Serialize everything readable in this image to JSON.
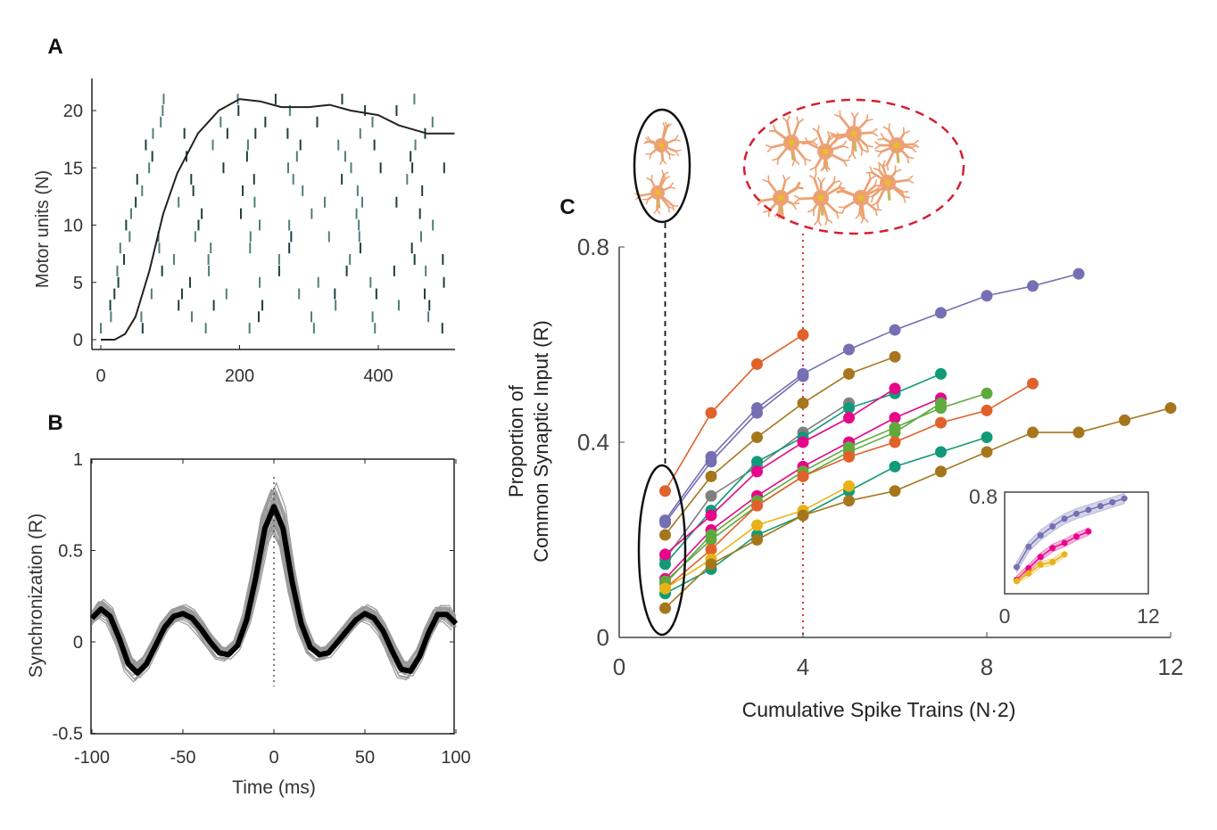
{
  "panel_labels": {
    "a": "A",
    "b": "B",
    "c": "C"
  },
  "colors": {
    "raster_dark": "#1f3f3f",
    "raster_light": "#4f7f7a",
    "orange": "#e0622a",
    "purple": "#7570b3",
    "brown": "#a6761d",
    "gray": "#808080",
    "teal": "#119a78",
    "magenta": "#e7058a",
    "green": "#5faa3f",
    "yellow": "#e8b318",
    "red_dashed": "#d42030",
    "neuron": "#eda173"
  },
  "chart_data": [
    {
      "id": "A",
      "type": "line",
      "title": "",
      "xlabel": "",
      "ylabel": "Motor units (N)",
      "xlim": [
        -10,
        510
      ],
      "ylim": [
        -1.5,
        22.5
      ],
      "xticks": [
        "0",
        "200",
        "400"
      ],
      "xtick_values": [
        0,
        200,
        400
      ],
      "yticks": [
        "0",
        "5",
        "10",
        "15",
        "20"
      ],
      "ytick_values": [
        0,
        5,
        10,
        15,
        20
      ],
      "raster_units": 21,
      "cumulative_curve": {
        "x": [
          0,
          20,
          35,
          50,
          70,
          90,
          110,
          140,
          170,
          200,
          230,
          260,
          300,
          330,
          360,
          400,
          430,
          470,
          510
        ],
        "y": [
          0,
          0,
          0.5,
          2,
          6,
          11,
          14.5,
          18,
          20,
          21,
          20.8,
          20.3,
          20.3,
          20.5,
          20,
          19.6,
          18.7,
          18,
          18
        ]
      }
    },
    {
      "id": "B",
      "type": "line",
      "xlabel": "Time (ms)",
      "ylabel": "Synchronization (R)",
      "xlim": [
        -100,
        100
      ],
      "ylim": [
        -0.5,
        1
      ],
      "xticks": [
        "-100",
        "-50",
        "0",
        "50",
        "100"
      ],
      "xtick_values": [
        -100,
        -50,
        0,
        50,
        100
      ],
      "yticks": [
        "1",
        "0.5",
        "0",
        "-0.5"
      ],
      "ytick_values": [
        1,
        0.5,
        0,
        -0.5
      ],
      "mean": {
        "x": [
          -100,
          -95,
          -90,
          -85,
          -80,
          -75,
          -70,
          -65,
          -60,
          -55,
          -50,
          -45,
          -40,
          -35,
          -30,
          -25,
          -20,
          -15,
          -10,
          -5,
          0,
          5,
          10,
          15,
          20,
          25,
          30,
          35,
          40,
          45,
          50,
          55,
          60,
          65,
          70,
          75,
          80,
          85,
          90,
          95,
          100
        ],
        "y": [
          0.13,
          0.18,
          0.14,
          0.02,
          -0.12,
          -0.17,
          -0.12,
          -0.02,
          0.08,
          0.14,
          0.155,
          0.13,
          0.07,
          0.0,
          -0.06,
          -0.07,
          -0.02,
          0.12,
          0.35,
          0.62,
          0.74,
          0.62,
          0.33,
          0.1,
          -0.03,
          -0.07,
          -0.06,
          0.0,
          0.06,
          0.12,
          0.155,
          0.13,
          0.06,
          -0.05,
          -0.15,
          -0.16,
          -0.08,
          0.05,
          0.15,
          0.15,
          0.1
        ]
      },
      "individual_traces": 40
    },
    {
      "id": "C",
      "type": "line",
      "xlabel": "Cumulative Spike Trains (N·2)",
      "ylabel": [
        "Proportion of",
        "Common Synaptic Input (R)"
      ],
      "xlim": [
        0,
        12
      ],
      "ylim": [
        0,
        0.8
      ],
      "xticks": [
        "0",
        "4",
        "8",
        "12"
      ],
      "xtick_values": [
        0,
        4,
        8,
        12
      ],
      "yticks": [
        "0.8",
        "0.4",
        "0"
      ],
      "ytick_values": [
        0.8,
        0.4,
        0
      ],
      "markers": {
        "small_group_x": 1,
        "large_group_x": 4
      },
      "series": [
        {
          "color": "orange",
          "values": [
            0.3,
            0.46,
            0.56,
            0.62
          ]
        },
        {
          "color": "purple",
          "values": [
            0.24,
            0.37,
            0.47,
            0.54,
            0.59,
            0.63,
            0.665,
            0.7,
            0.72,
            0.745
          ]
        },
        {
          "color": "purple",
          "values": [
            0.235,
            0.36,
            0.46,
            0.535
          ]
        },
        {
          "color": "brown",
          "values": [
            0.21,
            0.33,
            0.41,
            0.48,
            0.54,
            0.575
          ]
        },
        {
          "color": "gray",
          "values": [
            0.16,
            0.29,
            0.35,
            0.42,
            0.48
          ]
        },
        {
          "color": "teal",
          "values": [
            0.15,
            0.26,
            0.36,
            0.41,
            0.47,
            0.5,
            0.54
          ]
        },
        {
          "color": "magenta",
          "values": [
            0.17,
            0.25,
            0.34,
            0.4,
            0.45,
            0.51
          ]
        },
        {
          "color": "magenta",
          "values": [
            0.12,
            0.22,
            0.29,
            0.35,
            0.4,
            0.45,
            0.49
          ]
        },
        {
          "color": "green",
          "values": [
            0.11,
            0.21,
            0.28,
            0.34,
            0.39,
            0.43,
            0.47,
            0.5
          ]
        },
        {
          "color": "green",
          "values": [
            0.115,
            0.2,
            0.27,
            0.33,
            0.38,
            0.42,
            0.48
          ]
        },
        {
          "color": "orange",
          "values": [
            0.1,
            0.18,
            0.27,
            0.33,
            0.37,
            0.4,
            0.44,
            0.465,
            0.52
          ]
        },
        {
          "color": "teal",
          "values": [
            0.09,
            0.14,
            0.21,
            0.25,
            0.3,
            0.35,
            0.38,
            0.41
          ]
        },
        {
          "color": "yellow",
          "values": [
            0.1,
            0.16,
            0.23,
            0.26,
            0.31
          ]
        },
        {
          "color": "brown",
          "values": [
            0.06,
            0.15,
            0.2,
            0.25,
            0.28,
            0.3,
            0.34,
            0.38,
            0.42,
            0.42,
            0.445,
            0.47
          ]
        }
      ],
      "inset": {
        "xlim": [
          0,
          12
        ],
        "ylim": [
          0,
          0.8
        ],
        "xticks": [
          "0",
          "12"
        ],
        "xtick_values": [
          0,
          12
        ],
        "yticks": [
          "0.8"
        ],
        "ytick_values": [
          0.8
        ],
        "series": [
          {
            "color": "purple",
            "values": [
              0.21,
              0.37,
              0.46,
              0.53,
              0.59,
              0.63,
              0.66,
              0.69,
              0.72,
              0.75
            ],
            "spread": 0.04
          },
          {
            "color": "magenta",
            "values": [
              0.11,
              0.2,
              0.29,
              0.36,
              0.4,
              0.45,
              0.49
            ],
            "spread": 0.03
          },
          {
            "color": "yellow",
            "values": [
              0.1,
              0.16,
              0.23,
              0.25,
              0.31
            ],
            "spread": 0.025
          }
        ]
      }
    }
  ]
}
